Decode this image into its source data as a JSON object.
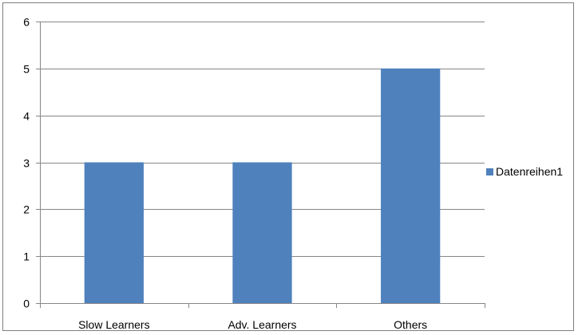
{
  "chart_data": {
    "type": "bar",
    "categories": [
      "Slow Learners",
      "Adv. Learners",
      "Others"
    ],
    "series": [
      {
        "name": "Datenreihen1",
        "values": [
          3,
          3,
          5
        ],
        "color": "#4f81bd"
      }
    ],
    "title": "",
    "xlabel": "",
    "ylabel": "",
    "ylim": [
      0,
      6
    ],
    "yticks": [
      "0",
      "1",
      "2",
      "3",
      "4",
      "5",
      "6"
    ],
    "grid": true,
    "legend_position": "right",
    "colors": {
      "bar": "#4f81bd",
      "gridline": "#868686",
      "axis": "#868686",
      "border": "#7f7f7f"
    }
  }
}
